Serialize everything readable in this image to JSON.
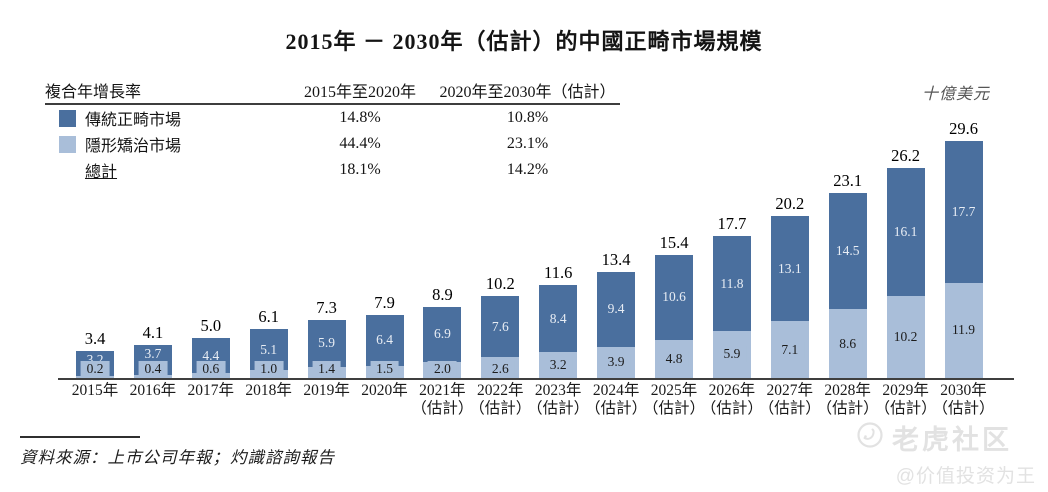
{
  "title": "2015年 － 2030年（估計）的中國正畸市場規模",
  "unit_label": "十億美元",
  "cagr_table": {
    "header": {
      "metric": "複合年增長率",
      "period1": "2015年至2020年",
      "period2": "2020年至2030年（估計）"
    },
    "rows": [
      {
        "label": "傳統正畸市場",
        "period1": "14.8%",
        "period2": "10.8%"
      },
      {
        "label": "隱形矯治市場",
        "period1": "44.4%",
        "period2": "23.1%"
      },
      {
        "label": "總計",
        "period1": "18.1%",
        "period2": "14.2%"
      }
    ]
  },
  "colors": {
    "traditional": "#4a6f9e",
    "invisible": "#a9bed9",
    "axis": "#3f3f3f"
  },
  "chart_data": {
    "type": "bar",
    "stacked": true,
    "title": "2015年 － 2030年（估計）的中國正畸市場規模",
    "ylabel": "十億美元",
    "grid": false,
    "legend_position": "top-left-table",
    "categories": [
      "2015年",
      "2016年",
      "2017年",
      "2018年",
      "2019年",
      "2020年",
      "2021年",
      "2022年",
      "2023年",
      "2024年",
      "2025年",
      "2026年",
      "2027年",
      "2028年",
      "2029年",
      "2030年"
    ],
    "estimate_suffix": "（估計）",
    "estimate_from_index": 6,
    "series": [
      {
        "name": "傳統正畸市場",
        "color": "#4a6f9e",
        "values": [
          3.2,
          3.7,
          4.4,
          5.1,
          5.9,
          6.4,
          6.9,
          7.6,
          8.4,
          9.4,
          10.6,
          11.8,
          13.1,
          14.5,
          16.1,
          17.7
        ]
      },
      {
        "name": "隱形矯治市場",
        "color": "#a9bed9",
        "values": [
          0.2,
          0.4,
          0.6,
          1.0,
          1.4,
          1.5,
          2.0,
          2.6,
          3.2,
          3.9,
          4.8,
          5.9,
          7.1,
          8.6,
          10.2,
          11.9
        ]
      }
    ],
    "totals": [
      3.4,
      4.1,
      5.0,
      6.1,
      7.3,
      7.9,
      8.9,
      10.2,
      11.6,
      13.4,
      15.4,
      17.7,
      20.2,
      23.1,
      26.2,
      29.6
    ]
  },
  "source_note": "資料來源：上市公司年報；灼識諮詢報告",
  "watermark": {
    "brand": "老虎社区",
    "handle": "@价值投资为王"
  }
}
